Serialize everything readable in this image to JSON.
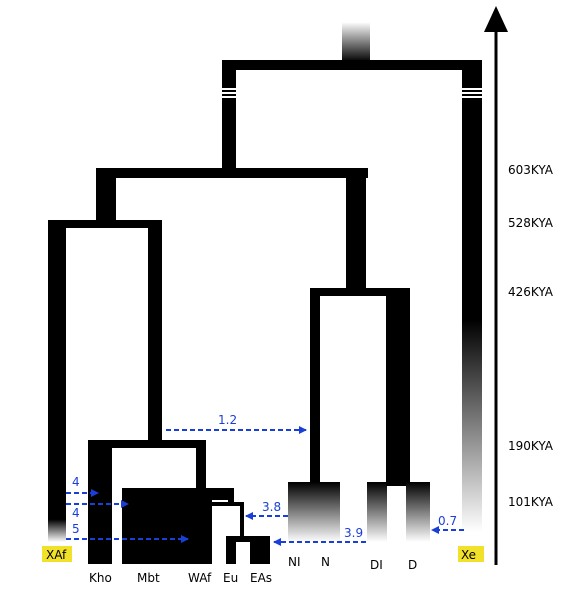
{
  "time_labels": [
    "603KYA",
    "528KYA",
    "426KYA",
    "190KYA",
    "101KYA"
  ],
  "populations": {
    "xaf": "XAf",
    "kho": "Kho",
    "mbt": "Mbt",
    "waf": "WAf",
    "eu": "Eu",
    "eas": "EAs",
    "ni": "NI",
    "n": "N",
    "di": "DI",
    "d": "D",
    "xe": "Xe"
  },
  "migrations": [
    "1.2",
    "4",
    "4",
    "5",
    "3.8",
    "3.9",
    "0.7"
  ],
  "colors": {
    "branch": "#000000",
    "migration_arrow": "#1a3fd6",
    "highlight": "#f2e12a"
  }
}
